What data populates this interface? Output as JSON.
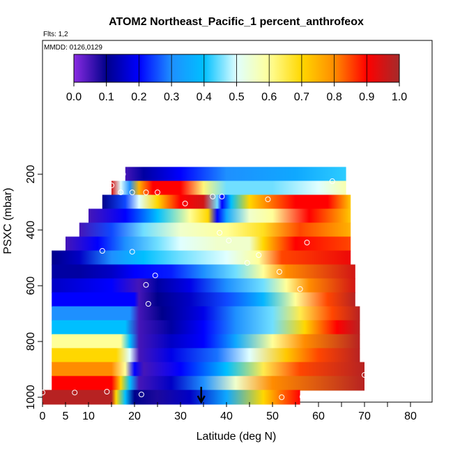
{
  "chart_data": {
    "type": "heatmap",
    "title": "ATOM2 Northeast_Pacific_1 percent_anthrofeox",
    "flights_note": "Flts: 1,2",
    "dates_note": "MMDD: 0126,0129",
    "xlabel": "Latitude (deg N)",
    "ylabel": "PSXC (mbar)",
    "xlim": [
      0,
      85
    ],
    "ylim": [
      1000,
      100
    ],
    "x_ticks": [
      0,
      5,
      10,
      20,
      30,
      40,
      50,
      60,
      70,
      80
    ],
    "x_tick_labels": [
      "0",
      "5",
      "10",
      "20",
      "30",
      "40",
      "50",
      "60",
      "70",
      "80"
    ],
    "x_minor_ticks": [
      15,
      25,
      35,
      45,
      55,
      65,
      75,
      85
    ],
    "y_ticks": [
      200,
      400,
      600,
      800,
      1000
    ],
    "y_tick_labels": [
      "200",
      "400",
      "600",
      "800",
      "1000"
    ],
    "colorbar": {
      "min": 0.0,
      "max": 1.0,
      "ticks": [
        0.0,
        0.1,
        0.2,
        0.3,
        0.4,
        0.5,
        0.6,
        0.7,
        0.8,
        0.9,
        1.0
      ],
      "tick_labels": [
        "0.0",
        "0.1",
        "0.2",
        "0.3",
        "0.4",
        "0.5",
        "0.6",
        "0.7",
        "0.8",
        "0.9",
        "1.0"
      ],
      "palette": [
        "#8a2be2",
        "#00008b",
        "#0000ff",
        "#1e90ff",
        "#00bfff",
        "#e0ffff",
        "#ffff99",
        "#ffd700",
        "#ff8c00",
        "#ff0000",
        "#a52a2a"
      ]
    },
    "layers": [
      {
        "p": 200,
        "x0": 18,
        "x1": 66,
        "knots": [
          [
            18,
            0.05
          ],
          [
            22,
            0.12
          ],
          [
            30,
            0.2
          ],
          [
            40,
            0.3
          ],
          [
            55,
            0.35
          ],
          [
            66,
            0.42
          ]
        ]
      },
      {
        "p": 250,
        "x0": 15,
        "x1": 66,
        "knots": [
          [
            15,
            0.95
          ],
          [
            17,
            0.5
          ],
          [
            19,
            0.3
          ],
          [
            21,
            0.75
          ],
          [
            24,
            0.9
          ],
          [
            30,
            0.9
          ],
          [
            35,
            0.62
          ],
          [
            40,
            0.45
          ],
          [
            50,
            0.45
          ],
          [
            60,
            0.5
          ],
          [
            66,
            0.58
          ]
        ]
      },
      {
        "p": 300,
        "x0": 13,
        "x1": 67,
        "knots": [
          [
            13,
            0.1
          ],
          [
            18,
            0.25
          ],
          [
            21,
            0.5
          ],
          [
            25,
            0.7
          ],
          [
            30,
            0.9
          ],
          [
            35,
            0.95
          ],
          [
            38,
            0.45
          ],
          [
            39,
            0.2
          ],
          [
            41,
            0.4
          ],
          [
            45,
            0.7
          ],
          [
            55,
            0.9
          ],
          [
            62,
            0.9
          ],
          [
            67,
            0.72
          ]
        ]
      },
      {
        "p": 350,
        "x0": 10,
        "x1": 67,
        "knots": [
          [
            10,
            0.05
          ],
          [
            18,
            0.2
          ],
          [
            25,
            0.4
          ],
          [
            32,
            0.6
          ],
          [
            36,
            0.7
          ],
          [
            38,
            0.2
          ],
          [
            40,
            0.35
          ],
          [
            45,
            0.55
          ],
          [
            50,
            0.6
          ],
          [
            58,
            0.9
          ],
          [
            67,
            0.72
          ]
        ]
      },
      {
        "p": 400,
        "x0": 8,
        "x1": 67,
        "knots": [
          [
            8,
            0.05
          ],
          [
            15,
            0.25
          ],
          [
            22,
            0.45
          ],
          [
            30,
            0.55
          ],
          [
            40,
            0.6
          ],
          [
            48,
            0.68
          ],
          [
            56,
            0.85
          ],
          [
            67,
            0.75
          ]
        ]
      },
      {
        "p": 450,
        "x0": 5,
        "x1": 67,
        "knots": [
          [
            5,
            0.05
          ],
          [
            12,
            0.2
          ],
          [
            18,
            0.3
          ],
          [
            25,
            0.45
          ],
          [
            30,
            0.5
          ],
          [
            38,
            0.55
          ],
          [
            45,
            0.55
          ],
          [
            48,
            0.7
          ],
          [
            55,
            0.9
          ],
          [
            67,
            0.85
          ]
        ]
      },
      {
        "p": 500,
        "x0": 2,
        "x1": 67,
        "knots": [
          [
            2,
            0.1
          ],
          [
            8,
            0.15
          ],
          [
            15,
            0.3
          ],
          [
            22,
            0.4
          ],
          [
            30,
            0.45
          ],
          [
            40,
            0.5
          ],
          [
            47,
            0.6
          ],
          [
            52,
            0.85
          ],
          [
            67,
            0.92
          ]
        ]
      },
      {
        "p": 550,
        "x0": 2,
        "x1": 68,
        "knots": [
          [
            2,
            0.12
          ],
          [
            8,
            0.12
          ],
          [
            15,
            0.15
          ],
          [
            20,
            0.2
          ],
          [
            28,
            0.22
          ],
          [
            35,
            0.3
          ],
          [
            42,
            0.45
          ],
          [
            48,
            0.6
          ],
          [
            53,
            0.8
          ],
          [
            68,
            0.95
          ]
        ]
      },
      {
        "p": 600,
        "x0": 2,
        "x1": 68,
        "knots": [
          [
            2,
            0.15
          ],
          [
            15,
            0.2
          ],
          [
            21,
            0.05
          ],
          [
            25,
            0.12
          ],
          [
            32,
            0.18
          ],
          [
            40,
            0.3
          ],
          [
            48,
            0.45
          ],
          [
            53,
            0.6
          ],
          [
            58,
            0.8
          ],
          [
            68,
            0.95
          ]
        ]
      },
      {
        "p": 650,
        "x0": 2,
        "x1": 68,
        "knots": [
          [
            2,
            0.2
          ],
          [
            20,
            0.2
          ],
          [
            21,
            0.05
          ],
          [
            25,
            0.1
          ],
          [
            32,
            0.15
          ],
          [
            40,
            0.25
          ],
          [
            48,
            0.38
          ],
          [
            55,
            0.6
          ],
          [
            62,
            0.85
          ],
          [
            68,
            0.98
          ]
        ]
      },
      {
        "p": 700,
        "x0": 2,
        "x1": 69,
        "knots": [
          [
            2,
            0.3
          ],
          [
            19,
            0.3
          ],
          [
            21,
            0.05
          ],
          [
            26,
            0.1
          ],
          [
            35,
            0.18
          ],
          [
            42,
            0.3
          ],
          [
            50,
            0.45
          ],
          [
            56,
            0.65
          ],
          [
            63,
            0.85
          ],
          [
            69,
            0.98
          ]
        ]
      },
      {
        "p": 750,
        "x0": 2,
        "x1": 69,
        "knots": [
          [
            2,
            0.4
          ],
          [
            18,
            0.4
          ],
          [
            21,
            0.05
          ],
          [
            28,
            0.12
          ],
          [
            35,
            0.2
          ],
          [
            42,
            0.3
          ],
          [
            50,
            0.45
          ],
          [
            57,
            0.7
          ],
          [
            64,
            0.9
          ],
          [
            69,
            0.98
          ]
        ]
      },
      {
        "p": 800,
        "x0": 2,
        "x1": 69,
        "knots": [
          [
            2,
            0.6
          ],
          [
            17,
            0.6
          ],
          [
            19,
            0.4
          ],
          [
            21,
            0.05
          ],
          [
            28,
            0.15
          ],
          [
            35,
            0.2
          ],
          [
            42,
            0.35
          ],
          [
            50,
            0.6
          ],
          [
            57,
            0.8
          ],
          [
            69,
            0.98
          ]
        ]
      },
      {
        "p": 850,
        "x0": 2,
        "x1": 69,
        "knots": [
          [
            2,
            0.7
          ],
          [
            16,
            0.7
          ],
          [
            19,
            0.5
          ],
          [
            21,
            0.05
          ],
          [
            28,
            0.18
          ],
          [
            38,
            0.28
          ],
          [
            45,
            0.5
          ],
          [
            53,
            0.72
          ],
          [
            60,
            0.85
          ],
          [
            69,
            0.98
          ]
        ]
      },
      {
        "p": 900,
        "x0": 2,
        "x1": 70,
        "knots": [
          [
            2,
            0.8
          ],
          [
            15,
            0.8
          ],
          [
            18,
            0.6
          ],
          [
            20,
            0.2
          ],
          [
            22,
            0.05
          ],
          [
            30,
            0.2
          ],
          [
            40,
            0.4
          ],
          [
            48,
            0.65
          ],
          [
            56,
            0.85
          ],
          [
            70,
            0.98
          ]
        ]
      },
      {
        "p": 950,
        "x0": 2,
        "x1": 70,
        "knots": [
          [
            2,
            0.9
          ],
          [
            15,
            0.9
          ],
          [
            17,
            0.7
          ],
          [
            19,
            0.4
          ],
          [
            21,
            0.05
          ],
          [
            28,
            0.15
          ],
          [
            35,
            0.3
          ],
          [
            42,
            0.55
          ],
          [
            50,
            0.8
          ],
          [
            70,
            0.98
          ]
        ]
      },
      {
        "p": 1000,
        "x0": 0,
        "x1": 56,
        "knots": [
          [
            0,
            0.98
          ],
          [
            15,
            0.98
          ],
          [
            16,
            0.7
          ],
          [
            18,
            0.4
          ],
          [
            20,
            0.1
          ],
          [
            25,
            0.08
          ],
          [
            32,
            0.15
          ],
          [
            40,
            0.35
          ],
          [
            48,
            0.7
          ],
          [
            56,
            0.9
          ]
        ]
      }
    ],
    "flight_points": [
      [
        17.5,
        200
      ],
      [
        15,
        240
      ],
      [
        17,
        265
      ],
      [
        19.5,
        265
      ],
      [
        22.5,
        265
      ],
      [
        25,
        265
      ],
      [
        31,
        305
      ],
      [
        37,
        280
      ],
      [
        39,
        280
      ],
      [
        49,
        290
      ],
      [
        63,
        225
      ],
      [
        23,
        665
      ],
      [
        24.5,
        563
      ],
      [
        22.5,
        597
      ],
      [
        19.5,
        478
      ],
      [
        13,
        475
      ],
      [
        1,
        490
      ],
      [
        38.5,
        410
      ],
      [
        40.5,
        438
      ],
      [
        44.5,
        518
      ],
      [
        47,
        490
      ],
      [
        51.5,
        550
      ],
      [
        56,
        612
      ],
      [
        57.5,
        445
      ],
      [
        70,
        920
      ],
      [
        0,
        983
      ],
      [
        7,
        983
      ],
      [
        14,
        980
      ],
      [
        21.5,
        990
      ],
      [
        52,
        1000
      ],
      [
        56.5,
        998
      ]
    ],
    "marker": {
      "lat": 34.5,
      "p": 1000
    }
  }
}
